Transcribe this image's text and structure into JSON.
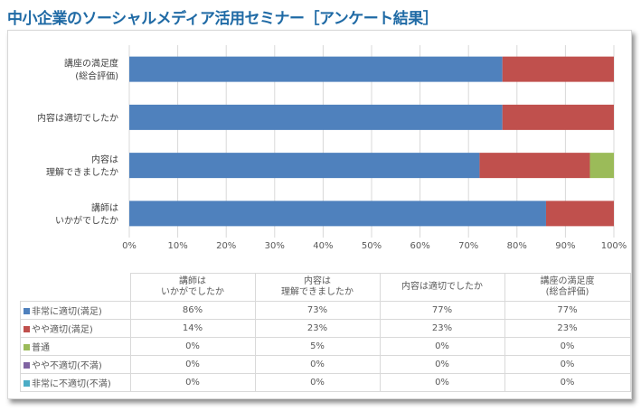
{
  "title": "中小企業のソーシャルメディア活用セミナー［アンケート結果］",
  "chart_data": {
    "type": "bar",
    "orientation": "horizontal",
    "stacked": "percent",
    "categories": [
      "講師は\nいかがでしたか",
      "内容は\n理解できましたか",
      "内容は適切でしたか",
      "講座の満足度\n(総合評価)"
    ],
    "series": [
      {
        "name": "非常に適切(満足)",
        "color": "#4f81bd",
        "values": [
          86,
          73,
          77,
          77
        ]
      },
      {
        "name": "やや適切(満足)",
        "color": "#c0504d",
        "values": [
          14,
          23,
          23,
          23
        ]
      },
      {
        "name": "普通",
        "color": "#9bbb59",
        "values": [
          0,
          5,
          0,
          0
        ]
      },
      {
        "name": "やや不適切(不満)",
        "color": "#8064a2",
        "values": [
          0,
          0,
          0,
          0
        ]
      },
      {
        "name": "非常に不適切(不満)",
        "color": "#4bacc6",
        "values": [
          0,
          0,
          0,
          0
        ]
      }
    ],
    "xlim": [
      0,
      100
    ],
    "xticks": [
      "0%",
      "10%",
      "20%",
      "30%",
      "40%",
      "50%",
      "60%",
      "70%",
      "80%",
      "90%",
      "100%"
    ],
    "grid": true,
    "legend": "data-table",
    "table_values": [
      [
        "86%",
        "73%",
        "77%",
        "77%"
      ],
      [
        "14%",
        "23%",
        "23%",
        "23%"
      ],
      [
        "0%",
        "5%",
        "0%",
        "0%"
      ],
      [
        "0%",
        "0%",
        "0%",
        "0%"
      ],
      [
        "0%",
        "0%",
        "0%",
        "0%"
      ]
    ]
  }
}
